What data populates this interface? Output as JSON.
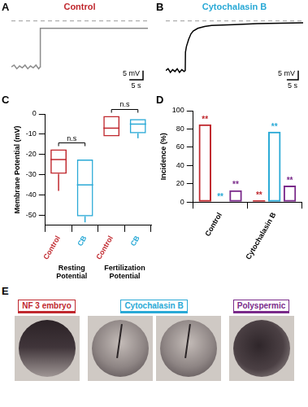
{
  "chart_data": [
    {
      "panel": "A",
      "type": "line",
      "title": "Control",
      "color": "#8c8c8c",
      "x": [
        0,
        1,
        2,
        3,
        4,
        5,
        6,
        7,
        8,
        9,
        10,
        10.5,
        10.6,
        15,
        20,
        30,
        40,
        50
      ],
      "values": [
        -25,
        -24,
        -26,
        -24.5,
        -25.5,
        -24,
        -26,
        -24.5,
        -25.5,
        -24,
        -26,
        -25,
        -4,
        -4,
        -4,
        -4,
        -4,
        -4
      ],
      "xlim": [
        0,
        50
      ],
      "ylim": [
        -32,
        2
      ],
      "tick_labels": false,
      "grid": false,
      "reference_line": 0,
      "scale_bar": {
        "x": 5,
        "x_label": "5 s",
        "y": 5,
        "y_label": "5 mV"
      }
    },
    {
      "panel": "B",
      "type": "line",
      "title": "Cytochalasin B",
      "color": "#000000",
      "x": [
        0,
        1,
        2,
        3,
        4,
        5,
        6,
        7,
        8,
        8.5,
        8.6,
        9,
        10,
        11,
        12,
        14,
        17,
        20,
        25,
        30,
        40,
        50,
        60
      ],
      "values": [
        -27,
        -26,
        -28,
        -26.5,
        -27.5,
        -26,
        -28,
        -26.5,
        -27.5,
        -27,
        -17,
        -14,
        -10,
        -7,
        -5.5,
        -4,
        -3,
        -2.5,
        -2.2,
        -2,
        -1.5,
        -1.2,
        -1
      ],
      "xlim": [
        0,
        60
      ],
      "ylim": [
        -32,
        2
      ],
      "tick_labels": false,
      "grid": false,
      "reference_line": 0,
      "scale_bar": {
        "x": 5,
        "x_label": "5 s",
        "y": 5,
        "y_label": "5 mV"
      }
    },
    {
      "panel": "C",
      "type": "box",
      "y_label": "Membrane Potential (mV)",
      "categories": [
        "Control",
        "CB",
        "Control",
        "CB"
      ],
      "groups": [
        "Resting Potential",
        "Fertilization Potential"
      ],
      "colors": [
        "#c0282e",
        "#29a9d6",
        "#c0282e",
        "#29a9d6"
      ],
      "boxes": [
        {
          "min": -38,
          "q1": -29.5,
          "median": -22.5,
          "q3": -17.5,
          "max": -17.5
        },
        {
          "min": -53.5,
          "q1": -50.5,
          "median": -35,
          "q3": -22.5,
          "max": -22.5
        },
        {
          "min": -11,
          "q1": -11,
          "median": -7,
          "q3": -1,
          "max": -1
        },
        {
          "min": -12,
          "q1": -9.5,
          "median": -5,
          "q3": -2.5,
          "max": -2.5
        }
      ],
      "ylim": [
        -55,
        0
      ],
      "yticks": [
        -50,
        -40,
        -30,
        -20,
        -10,
        0
      ],
      "grid": false,
      "annotations": [
        {
          "text": "n.s",
          "from": 0,
          "to": 1
        },
        {
          "text": "n.s",
          "from": 2,
          "to": 3
        }
      ]
    },
    {
      "panel": "D",
      "type": "bar",
      "y_label": "Incidence (%)",
      "categories": [
        "Control",
        "Cytochalasin B"
      ],
      "series": [
        {
          "color": "#c0282e",
          "values": [
            85,
            2
          ],
          "annotations": [
            "**",
            "**"
          ]
        },
        {
          "color": "#29a9d6",
          "values": [
            0,
            77
          ],
          "annotations": [
            "**",
            "**"
          ]
        },
        {
          "color": "#7a2a8a",
          "values": [
            13,
            18
          ],
          "annotations": [
            "**",
            "**"
          ]
        }
      ],
      "ylim": [
        0,
        100
      ],
      "yticks": [
        0,
        20,
        40,
        60,
        80,
        100
      ],
      "grid": false
    }
  ],
  "image_panel": {
    "panel": "E",
    "images": [
      {
        "label": "NF 3 embryo",
        "color": "#c0282e",
        "count": 1
      },
      {
        "label": "Cytochalasin B",
        "color": "#29a9d6",
        "count": 2
      },
      {
        "label": "Polyspermic",
        "color": "#7a2a8a",
        "count": 1
      }
    ]
  }
}
